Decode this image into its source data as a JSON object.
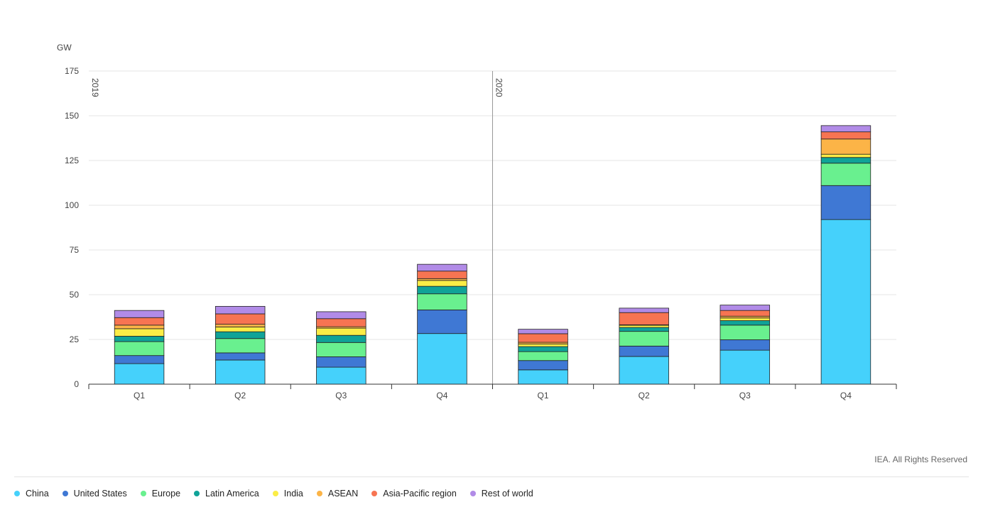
{
  "chart_data": {
    "type": "bar",
    "stacked": true,
    "ylabel": "GW",
    "ylim": [
      0,
      175
    ],
    "yticks": [
      0,
      25,
      50,
      75,
      100,
      125,
      150,
      175
    ],
    "grid": true,
    "legend_position": "bottom-left",
    "groups": [
      {
        "label": "2019",
        "categories": [
          "Q1",
          "Q2",
          "Q3",
          "Q4"
        ]
      },
      {
        "label": "2020",
        "categories": [
          "Q1",
          "Q2",
          "Q3",
          "Q4"
        ]
      }
    ],
    "series": [
      {
        "name": "China",
        "color": "#45d1fb",
        "values": [
          11.5,
          13.5,
          9.5,
          28.3,
          8.0,
          15.5,
          19.0,
          92.0
        ]
      },
      {
        "name": "United States",
        "color": "#3f78d4",
        "values": [
          4.5,
          4.0,
          5.8,
          13.2,
          5.2,
          5.8,
          5.8,
          19.0
        ]
      },
      {
        "name": "Europe",
        "color": "#69f08f",
        "values": [
          7.8,
          8.0,
          8.0,
          9.0,
          5.0,
          8.2,
          8.2,
          12.5
        ]
      },
      {
        "name": "Latin America",
        "color": "#10a398",
        "values": [
          3.0,
          3.8,
          4.0,
          4.2,
          2.8,
          2.2,
          2.5,
          3.2
        ]
      },
      {
        "name": "India",
        "color": "#fbed46",
        "values": [
          4.2,
          2.7,
          4.0,
          3.3,
          1.5,
          1.2,
          1.5,
          1.8
        ]
      },
      {
        "name": "ASEAN",
        "color": "#fcb447",
        "values": [
          2.0,
          1.5,
          0.8,
          1.0,
          0.9,
          0.3,
          1.0,
          8.5
        ]
      },
      {
        "name": "Asia-Pacific region",
        "color": "#f77452",
        "values": [
          4.2,
          5.8,
          4.5,
          4.2,
          4.8,
          6.8,
          3.2,
          4.0
        ]
      },
      {
        "name": "Rest of world",
        "color": "#b18be7",
        "values": [
          4.0,
          4.2,
          3.9,
          3.8,
          2.5,
          2.5,
          3.0,
          3.5
        ]
      }
    ]
  },
  "credit": "IEA. All Rights Reserved"
}
